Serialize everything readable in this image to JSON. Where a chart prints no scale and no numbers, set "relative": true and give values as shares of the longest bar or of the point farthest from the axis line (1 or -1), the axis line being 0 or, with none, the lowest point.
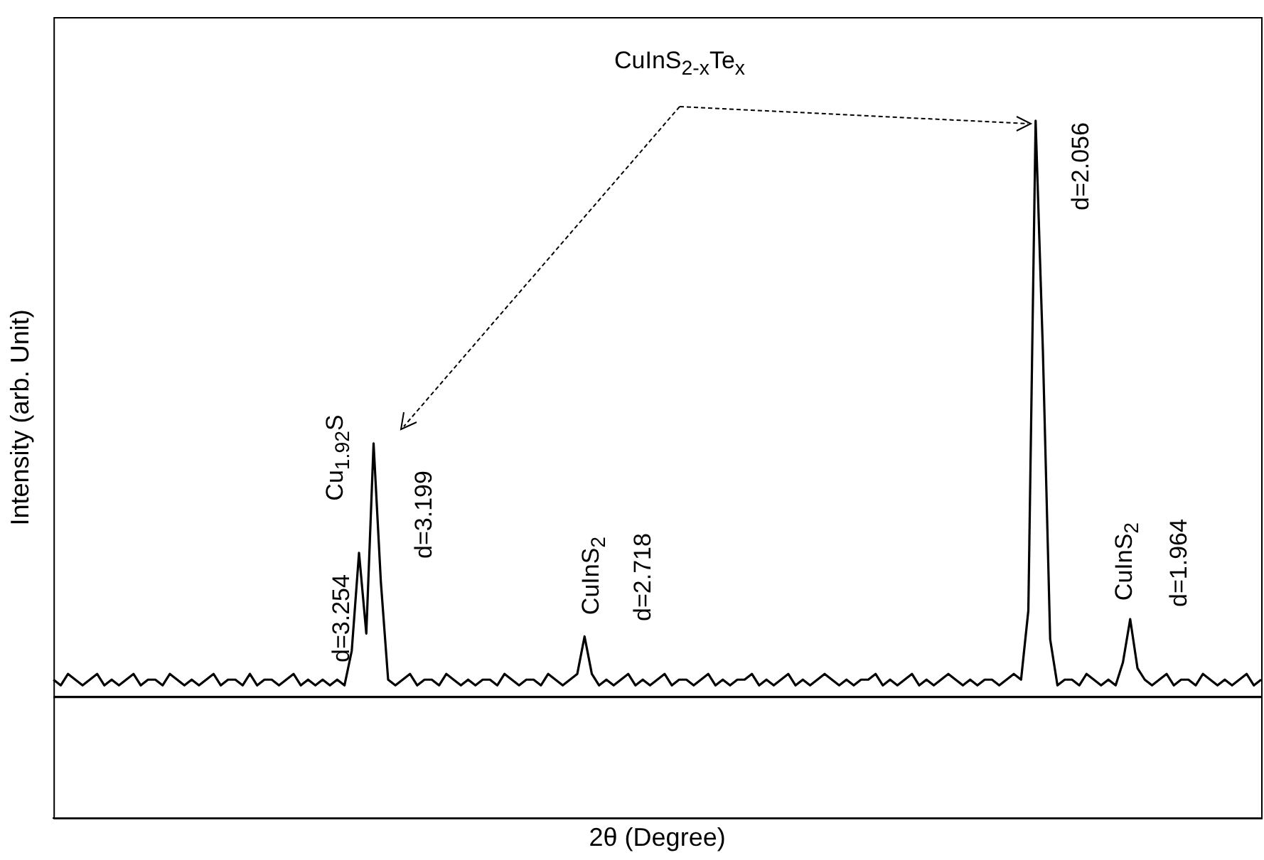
{
  "chart_data": {
    "type": "line",
    "xlabel": "2θ (Degree)",
    "ylabel": "Intensity (arb. Unit)",
    "relative": true,
    "color": "#000000",
    "marker": "none",
    "grid": false,
    "legend": false,
    "categories": [
      null,
      null,
      null,
      null,
      null,
      null,
      null,
      null,
      null,
      null,
      null,
      null,
      null,
      null,
      null,
      null,
      null,
      null,
      null,
      null,
      null,
      null,
      null,
      null,
      null,
      null,
      null,
      null,
      null,
      null,
      null,
      null,
      null,
      null,
      null,
      null,
      null,
      null,
      null,
      null,
      null,
      null,
      null,
      null,
      null,
      null,
      null,
      null,
      null,
      null,
      null,
      null,
      null,
      null,
      null,
      null,
      null,
      null,
      null,
      null,
      null,
      null,
      null,
      null,
      null,
      null,
      null,
      null,
      null,
      null,
      null,
      null,
      null,
      null,
      null,
      null,
      null,
      null,
      null,
      null,
      null,
      null,
      null,
      null,
      null,
      null,
      null,
      null,
      null,
      null,
      null,
      null,
      null,
      null,
      null,
      null,
      null,
      null,
      null,
      null,
      null,
      null,
      null,
      null,
      null,
      null,
      null,
      null,
      null,
      null,
      null,
      null,
      null,
      null,
      null,
      null,
      null,
      null,
      null,
      null,
      null,
      null,
      null,
      null,
      null,
      null,
      null,
      null,
      null,
      null,
      null,
      null,
      null,
      null,
      null,
      null,
      null,
      null,
      null,
      null,
      null,
      null,
      null,
      null,
      null,
      null,
      null,
      null,
      null,
      null,
      null,
      null,
      null,
      null,
      null,
      null,
      null,
      null,
      null,
      null,
      null,
      null,
      null,
      null,
      null,
      null,
      null
    ],
    "values": [
      0.03,
      0.02,
      0.04,
      0.03,
      0.02,
      0.03,
      0.04,
      0.02,
      0.03,
      0.02,
      0.03,
      0.04,
      0.02,
      0.03,
      0.03,
      0.02,
      0.04,
      0.03,
      0.02,
      0.03,
      0.02,
      0.03,
      0.04,
      0.02,
      0.03,
      0.03,
      0.02,
      0.04,
      0.02,
      0.03,
      0.03,
      0.02,
      0.03,
      0.04,
      0.02,
      0.03,
      0.02,
      0.03,
      0.02,
      0.03,
      0.02,
      0.08,
      0.25,
      0.11,
      0.44,
      0.2,
      0.03,
      0.02,
      0.03,
      0.04,
      0.02,
      0.03,
      0.03,
      0.02,
      0.04,
      0.03,
      0.02,
      0.03,
      0.02,
      0.03,
      0.03,
      0.02,
      0.04,
      0.03,
      0.02,
      0.03,
      0.03,
      0.02,
      0.04,
      0.03,
      0.02,
      0.03,
      0.04,
      0.105,
      0.04,
      0.02,
      0.03,
      0.02,
      0.03,
      0.04,
      0.02,
      0.03,
      0.02,
      0.03,
      0.04,
      0.02,
      0.03,
      0.03,
      0.02,
      0.03,
      0.04,
      0.02,
      0.03,
      0.02,
      0.03,
      0.03,
      0.04,
      0.02,
      0.03,
      0.02,
      0.03,
      0.04,
      0.02,
      0.03,
      0.02,
      0.03,
      0.04,
      0.03,
      0.02,
      0.03,
      0.02,
      0.03,
      0.03,
      0.04,
      0.02,
      0.03,
      0.02,
      0.03,
      0.04,
      0.02,
      0.03,
      0.02,
      0.03,
      0.04,
      0.03,
      0.02,
      0.03,
      0.02,
      0.03,
      0.03,
      0.02,
      0.03,
      0.04,
      0.03,
      0.15,
      1,
      0.6,
      0.1,
      0.02,
      0.03,
      0.03,
      0.02,
      0.04,
      0.03,
      0.02,
      0.03,
      0.02,
      0.06,
      0.135,
      0.05,
      0.03,
      0.02,
      0.03,
      0.04,
      0.02,
      0.03,
      0.03,
      0.02,
      0.04,
      0.03,
      0.02,
      0.03,
      0.02,
      0.03,
      0.04,
      0.02,
      0.03
    ],
    "annotations": [
      "CuInS$_{2-x}$Te$_{x}$",
      "d=3.254",
      "Cu$_{1.92}$S",
      "d=3.199",
      "CuInS$_{2}$",
      "d=2.718",
      "d=2.056",
      "CuInS$_{2}$",
      "d=1.964"
    ]
  }
}
